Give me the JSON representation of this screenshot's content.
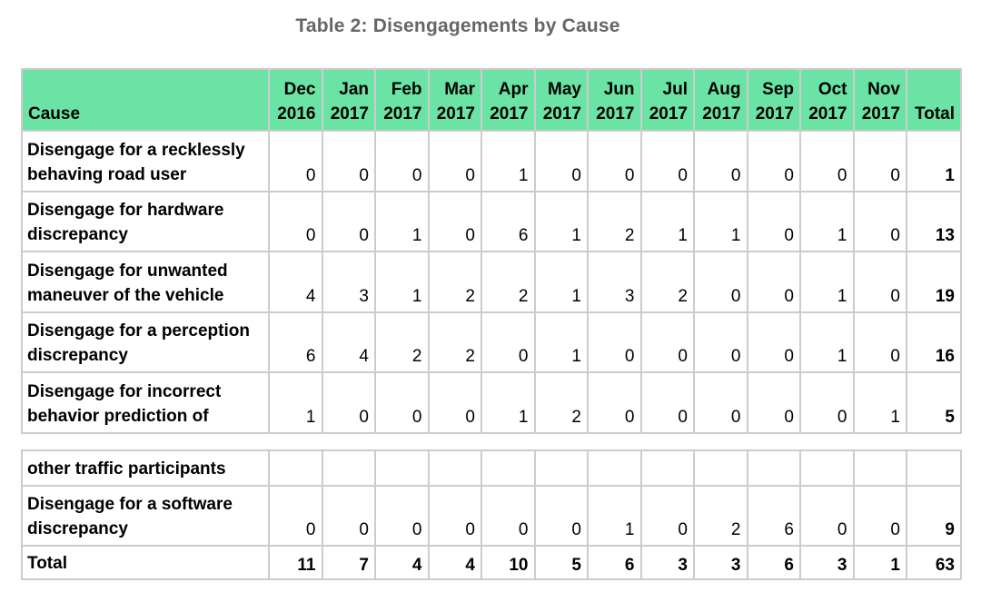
{
  "title": "Table 2:  Disengagements by Cause",
  "header": {
    "cause": "Cause",
    "months": [
      {
        "mon": "Dec",
        "yr": "2016"
      },
      {
        "mon": "Jan",
        "yr": "2017"
      },
      {
        "mon": "Feb",
        "yr": "2017"
      },
      {
        "mon": "Mar",
        "yr": "2017"
      },
      {
        "mon": "Apr",
        "yr": "2017"
      },
      {
        "mon": "May",
        "yr": "2017"
      },
      {
        "mon": "Jun",
        "yr": "2017"
      },
      {
        "mon": "Jul",
        "yr": "2017"
      },
      {
        "mon": "Aug",
        "yr": "2017"
      },
      {
        "mon": "Sep",
        "yr": "2017"
      },
      {
        "mon": "Oct",
        "yr": "2017"
      },
      {
        "mon": "Nov",
        "yr": "2017"
      }
    ],
    "total": "Total"
  },
  "rows": [
    {
      "cause": "Disengage for a recklessly behaving road user",
      "values": [
        "0",
        "0",
        "0",
        "0",
        "1",
        "0",
        "0",
        "0",
        "0",
        "0",
        "0",
        "0"
      ],
      "total": "1"
    },
    {
      "cause": "Disengage for hardware discrepancy",
      "values": [
        "0",
        "0",
        "1",
        "0",
        "6",
        "1",
        "2",
        "1",
        "1",
        "0",
        "1",
        "0"
      ],
      "total": "13"
    },
    {
      "cause": "Disengage for unwanted maneuver of the vehicle",
      "values": [
        "4",
        "3",
        "1",
        "2",
        "2",
        "1",
        "3",
        "2",
        "0",
        "0",
        "1",
        "0"
      ],
      "total": "19"
    },
    {
      "cause": "Disengage for a perception discrepancy",
      "values": [
        "6",
        "4",
        "2",
        "2",
        "0",
        "1",
        "0",
        "0",
        "0",
        "0",
        "1",
        "0"
      ],
      "total": "16"
    },
    {
      "cause": "Disengage for incorrect behavior prediction of",
      "values": [
        "1",
        "0",
        "0",
        "0",
        "1",
        "2",
        "0",
        "0",
        "0",
        "0",
        "0",
        "1"
      ],
      "total": "5"
    }
  ],
  "rows_continued": [
    {
      "cause": "other traffic participants",
      "values": [
        "",
        "",
        "",
        "",
        "",
        "",
        "",
        "",
        "",
        "",
        "",
        ""
      ],
      "total": ""
    },
    {
      "cause": "Disengage for a software discrepancy",
      "values": [
        "0",
        "0",
        "0",
        "0",
        "0",
        "0",
        "1",
        "0",
        "2",
        "6",
        "0",
        "0"
      ],
      "total": "9"
    }
  ],
  "total_row": {
    "label": "Total",
    "values": [
      "11",
      "7",
      "4",
      "4",
      "10",
      "5",
      "6",
      "3",
      "3",
      "6",
      "3",
      "1"
    ],
    "total": "63"
  }
}
